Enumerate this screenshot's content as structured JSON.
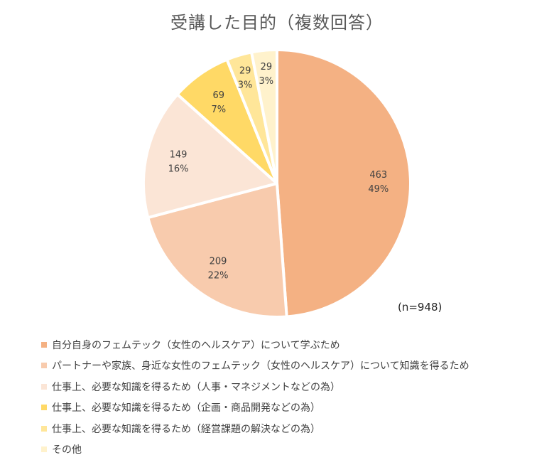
{
  "chart_data": {
    "type": "pie",
    "title": "受講した目的（複数回答）",
    "annotation": "(n=948)",
    "legend_position": "bottom",
    "slices": [
      {
        "name": "自分自身のフェムテック（女性のヘルスケア）について学ぶため",
        "value": 463,
        "percent_label": "49%",
        "color": "#F4B183"
      },
      {
        "name": "パートナーや家族、身近な女性のフェムテック（女性のヘルスケア）について知識を得るため",
        "value": 209,
        "percent_label": "22%",
        "color": "#F8CBAD"
      },
      {
        "name": "仕事上、必要な知識を得るため（人事・マネジメントなどの為）",
        "value": 149,
        "percent_label": "16%",
        "color": "#FBE5D6"
      },
      {
        "name": "仕事上、必要な知識を得るため（企画・商品開発などの為）",
        "value": 69,
        "percent_label": "7%",
        "color": "#FFD966"
      },
      {
        "name": "仕事上、必要な知識を得るため（経営課題の解決などの為）",
        "value": 29,
        "percent_label": "3%",
        "color": "#FFE699"
      },
      {
        "name": "その他",
        "value": 29,
        "percent_label": "3%",
        "color": "#FFF2CC"
      }
    ]
  }
}
